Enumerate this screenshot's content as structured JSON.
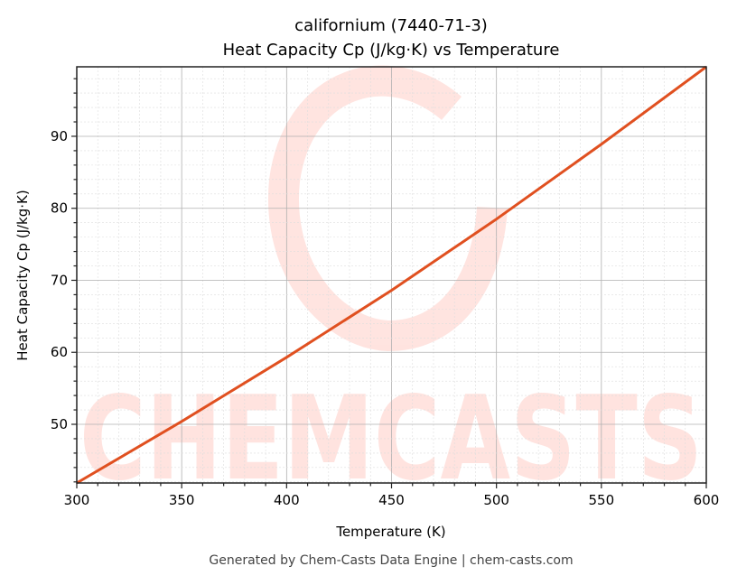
{
  "chart_data": {
    "type": "line",
    "title_line1": "californium (7440-71-3)",
    "title_line2": "Heat Capacity Cp (J/kg·K) vs Temperature",
    "xlabel": "Temperature (K)",
    "ylabel": "Heat Capacity Cp (J/kg·K)",
    "xlim": [
      300,
      600
    ],
    "ylim": [
      41.85,
      99.65
    ],
    "xticks": [
      300,
      350,
      400,
      450,
      500,
      550,
      600
    ],
    "yticks": [
      50,
      60,
      70,
      80,
      90
    ],
    "grid": true,
    "series": [
      {
        "name": "Cp",
        "color": "#e05020",
        "x": [
          300,
          350,
          400,
          450,
          500,
          550,
          600
        ],
        "y": [
          41.85,
          50.4,
          59.3,
          68.6,
          78.5,
          88.9,
          99.65
        ]
      }
    ],
    "watermark": "CHEMCASTS",
    "footer": "Generated by Chem-Casts Data Engine | chem-casts.com"
  }
}
